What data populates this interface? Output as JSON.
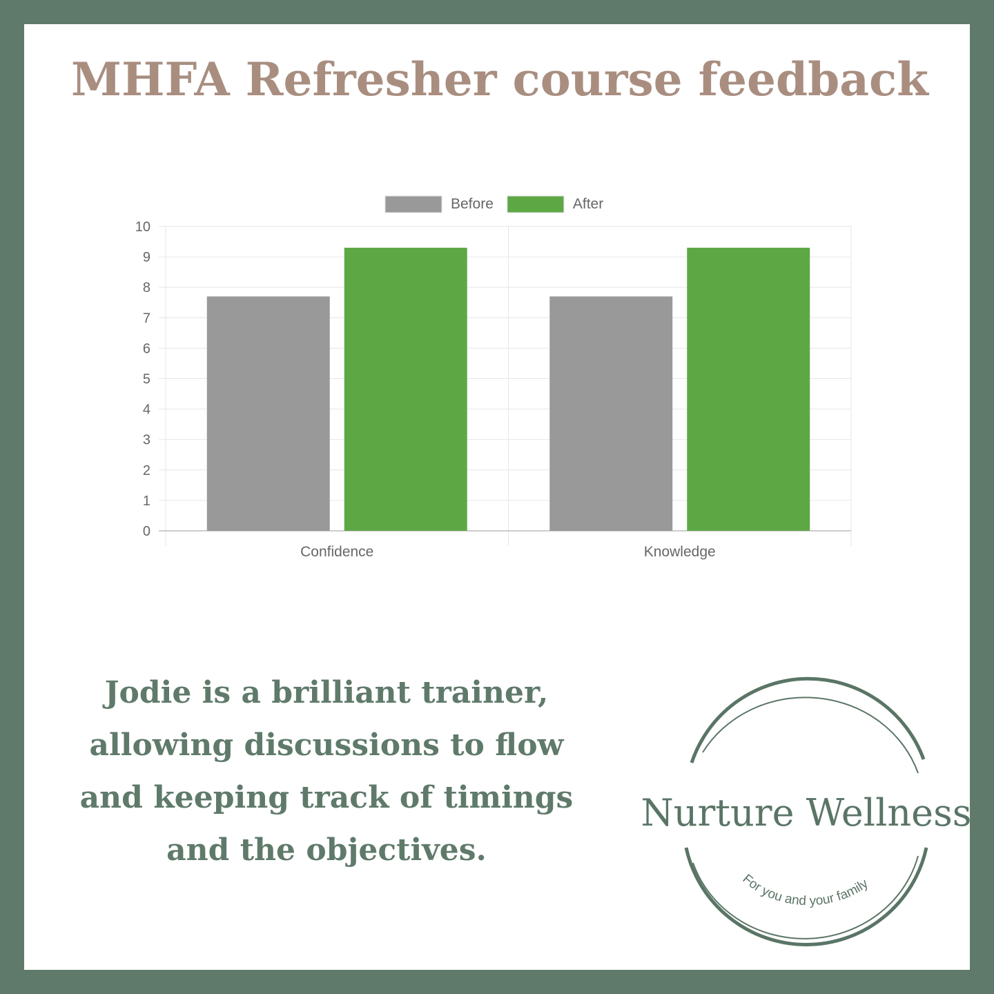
{
  "chart_data": {
    "type": "bar",
    "title": "MHFA Refresher course feedback",
    "categories": [
      "Confidence",
      "Knowledge"
    ],
    "series": [
      {
        "name": "Before",
        "color": "#999999",
        "values": [
          7.7,
          7.7
        ]
      },
      {
        "name": "After",
        "color": "#5da845",
        "values": [
          9.3,
          9.3
        ]
      }
    ],
    "ylim": [
      0,
      10
    ],
    "yticks": [
      0,
      1,
      2,
      3,
      4,
      5,
      6,
      7,
      8,
      9,
      10
    ],
    "grid": true,
    "legend": "top"
  },
  "quote": [
    "Jodie is a brilliant trainer,",
    "allowing discussions to flow",
    "and keeping track of timings",
    "and the objectives."
  ],
  "logo": {
    "name": "Nurture Wellness",
    "tagline": "For you and your family"
  }
}
